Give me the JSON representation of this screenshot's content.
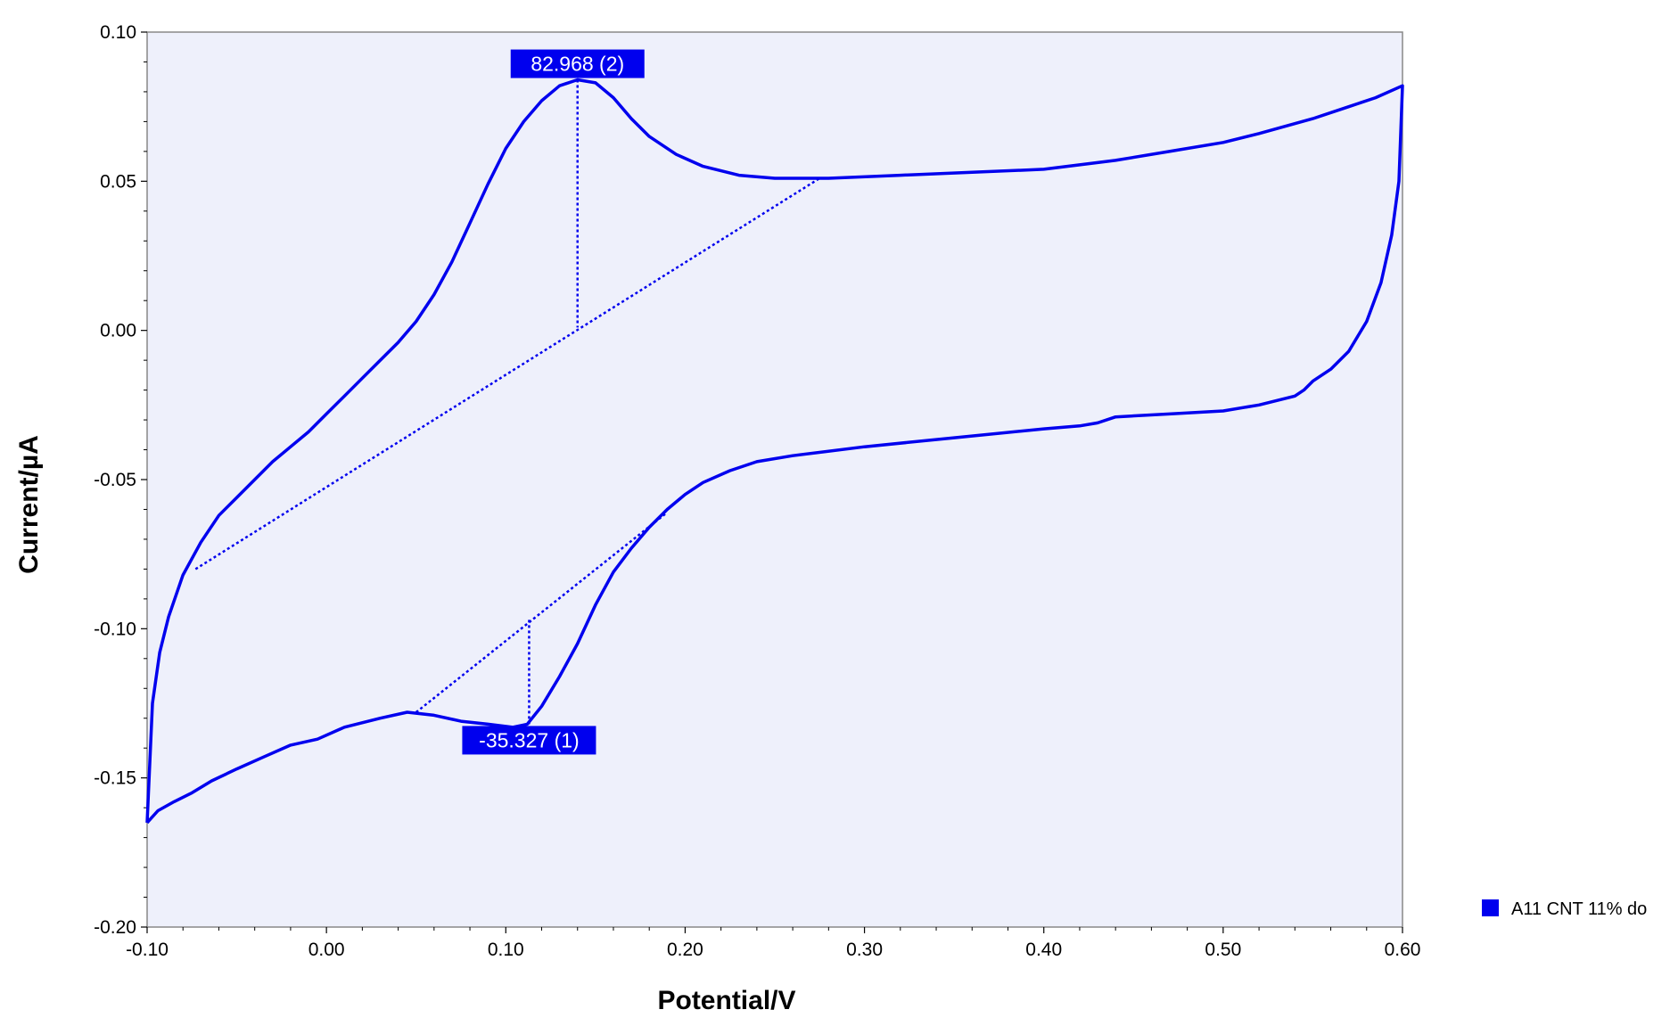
{
  "chart_data": {
    "type": "line",
    "title": "",
    "xlabel": "Potential/V",
    "ylabel": "Current/µA",
    "xlim": [
      -0.1,
      0.6
    ],
    "ylim": [
      -0.2,
      0.1
    ],
    "x_ticks": [
      "-0.10",
      "0.00",
      "0.10",
      "0.20",
      "0.30",
      "0.40",
      "0.50",
      "0.60"
    ],
    "y_ticks": [
      "0.10",
      "0.05",
      "0.00",
      "-0.05",
      "-0.10",
      "-0.15",
      "-0.20"
    ],
    "grid": false,
    "plot_background": "#eef0fb",
    "legend": {
      "position": "bottom-right",
      "entries": [
        "A11 CNT 11% do"
      ]
    },
    "series": [
      {
        "name": "A11 CNT 11% do",
        "color": "#0000ee",
        "points": [
          [
            -0.1,
            -0.165
          ],
          [
            -0.094,
            -0.161
          ],
          [
            -0.085,
            -0.158
          ],
          [
            -0.075,
            -0.155
          ],
          [
            -0.064,
            -0.151
          ],
          [
            -0.05,
            -0.147
          ],
          [
            -0.035,
            -0.143
          ],
          [
            -0.02,
            -0.139
          ],
          [
            -0.005,
            -0.137
          ],
          [
            0.01,
            -0.133
          ],
          [
            0.03,
            -0.13
          ],
          [
            0.045,
            -0.128
          ],
          [
            0.06,
            -0.129
          ],
          [
            0.075,
            -0.131
          ],
          [
            0.09,
            -0.132
          ],
          [
            0.104,
            -0.133
          ],
          [
            0.112,
            -0.132
          ],
          [
            0.12,
            -0.126
          ],
          [
            0.13,
            -0.116
          ],
          [
            0.14,
            -0.105
          ],
          [
            0.15,
            -0.092
          ],
          [
            0.16,
            -0.081
          ],
          [
            0.17,
            -0.073
          ],
          [
            0.18,
            -0.066
          ],
          [
            0.19,
            -0.06
          ],
          [
            0.2,
            -0.055
          ],
          [
            0.21,
            -0.051
          ],
          [
            0.225,
            -0.047
          ],
          [
            0.24,
            -0.044
          ],
          [
            0.26,
            -0.042
          ],
          [
            0.3,
            -0.039
          ],
          [
            0.35,
            -0.036
          ],
          [
            0.4,
            -0.033
          ],
          [
            0.42,
            -0.032
          ],
          [
            0.43,
            -0.031
          ],
          [
            0.44,
            -0.029
          ],
          [
            0.47,
            -0.028
          ],
          [
            0.5,
            -0.027
          ],
          [
            0.52,
            -0.025
          ],
          [
            0.54,
            -0.022
          ],
          [
            0.545,
            -0.02
          ],
          [
            0.55,
            -0.017
          ],
          [
            0.56,
            -0.013
          ],
          [
            0.57,
            -0.007
          ],
          [
            0.58,
            0.003
          ],
          [
            0.588,
            0.016
          ],
          [
            0.594,
            0.032
          ],
          [
            0.598,
            0.05
          ],
          [
            0.6,
            0.082
          ],
          [
            0.585,
            0.078
          ],
          [
            0.57,
            0.075
          ],
          [
            0.55,
            0.071
          ],
          [
            0.52,
            0.066
          ],
          [
            0.5,
            0.063
          ],
          [
            0.47,
            0.06
          ],
          [
            0.44,
            0.057
          ],
          [
            0.4,
            0.054
          ],
          [
            0.36,
            0.053
          ],
          [
            0.32,
            0.052
          ],
          [
            0.28,
            0.051
          ],
          [
            0.25,
            0.051
          ],
          [
            0.23,
            0.052
          ],
          [
            0.21,
            0.055
          ],
          [
            0.195,
            0.059
          ],
          [
            0.18,
            0.065
          ],
          [
            0.17,
            0.071
          ],
          [
            0.16,
            0.078
          ],
          [
            0.15,
            0.083
          ],
          [
            0.14,
            0.084
          ],
          [
            0.13,
            0.082
          ],
          [
            0.12,
            0.077
          ],
          [
            0.11,
            0.07
          ],
          [
            0.1,
            0.061
          ],
          [
            0.09,
            0.049
          ],
          [
            0.08,
            0.036
          ],
          [
            0.07,
            0.023
          ],
          [
            0.06,
            0.012
          ],
          [
            0.05,
            0.003
          ],
          [
            0.04,
            -0.004
          ],
          [
            0.03,
            -0.01
          ],
          [
            0.02,
            -0.016
          ],
          [
            0.01,
            -0.022
          ],
          [
            0.0,
            -0.028
          ],
          [
            -0.01,
            -0.034
          ],
          [
            -0.02,
            -0.039
          ],
          [
            -0.03,
            -0.044
          ],
          [
            -0.04,
            -0.05
          ],
          [
            -0.05,
            -0.056
          ],
          [
            -0.06,
            -0.062
          ],
          [
            -0.07,
            -0.071
          ],
          [
            -0.08,
            -0.082
          ],
          [
            -0.088,
            -0.096
          ],
          [
            -0.093,
            -0.108
          ],
          [
            -0.097,
            -0.125
          ],
          [
            -0.1,
            -0.165
          ]
        ]
      }
    ],
    "peaks": [
      {
        "label": "82.968 (2)",
        "peak": [
          0.14,
          0.084
        ],
        "baseline_foot": [
          0.14,
          0.001
        ],
        "baseline": [
          [
            -0.073,
            -0.08
          ],
          [
            0.275,
            0.051
          ]
        ]
      },
      {
        "label": "-35.327 (1)",
        "peak": [
          0.113,
          -0.132
        ],
        "baseline_foot": [
          0.113,
          -0.097
        ],
        "baseline": [
          [
            0.05,
            -0.128
          ],
          [
            0.19,
            -0.061
          ]
        ]
      }
    ]
  }
}
